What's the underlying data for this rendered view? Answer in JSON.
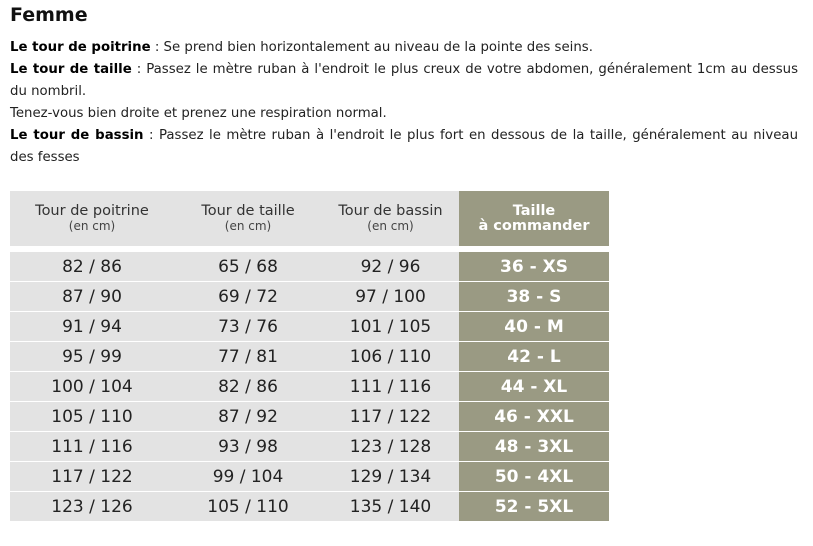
{
  "title": "Femme",
  "descriptions": [
    {
      "label": "Le tour de poitrine",
      "text": " : Se prend bien horizontalement au niveau de la pointe des seins."
    },
    {
      "label": "Le tour de taille",
      "text": " : Passez le mètre ruban à l'endroit le plus creux de votre abdomen, généralement 1cm au dessus du nombril."
    },
    {
      "label": "",
      "text": "Tenez-vous bien droite et prenez une respiration normal."
    },
    {
      "label": "Le tour de bassin",
      "text": " : Passez le mètre ruban à l'endroit le plus fort en dessous de la taille, généralement au niveau des fesses"
    }
  ],
  "table": {
    "headers": [
      {
        "label": "Tour de poitrine",
        "unit": "(en cm)"
      },
      {
        "label": "Tour de taille",
        "unit": "(en cm)"
      },
      {
        "label": "Tour de bassin",
        "unit": "(en cm)"
      },
      {
        "label": "Taille",
        "unit": "à commander"
      }
    ],
    "rows": [
      [
        "82 / 86",
        "65 / 68",
        "92 / 96",
        "36 - XS"
      ],
      [
        "87 / 90",
        "69 / 72",
        "97 / 100",
        "38 - S"
      ],
      [
        "91 / 94",
        "73 / 76",
        "101 / 105",
        "40 - M"
      ],
      [
        "95 / 99",
        "77 / 81",
        "106 / 110",
        "42 - L"
      ],
      [
        "100 / 104",
        "82 / 86",
        "111 / 116",
        "44 - XL"
      ],
      [
        "105 / 110",
        "87 / 92",
        "117 / 122",
        "46 - XXL"
      ],
      [
        "111 / 116",
        "93 / 98",
        "123 / 128",
        "48 - 3XL"
      ],
      [
        "117 / 122",
        "99 / 104",
        "129 / 134",
        "50 - 4XL"
      ],
      [
        "123 / 126",
        "105 / 110",
        "135 / 140",
        "52 - 5XL"
      ]
    ]
  },
  "colors": {
    "order_column": "#9a9a83",
    "cell_background": "#e3e3e3"
  }
}
